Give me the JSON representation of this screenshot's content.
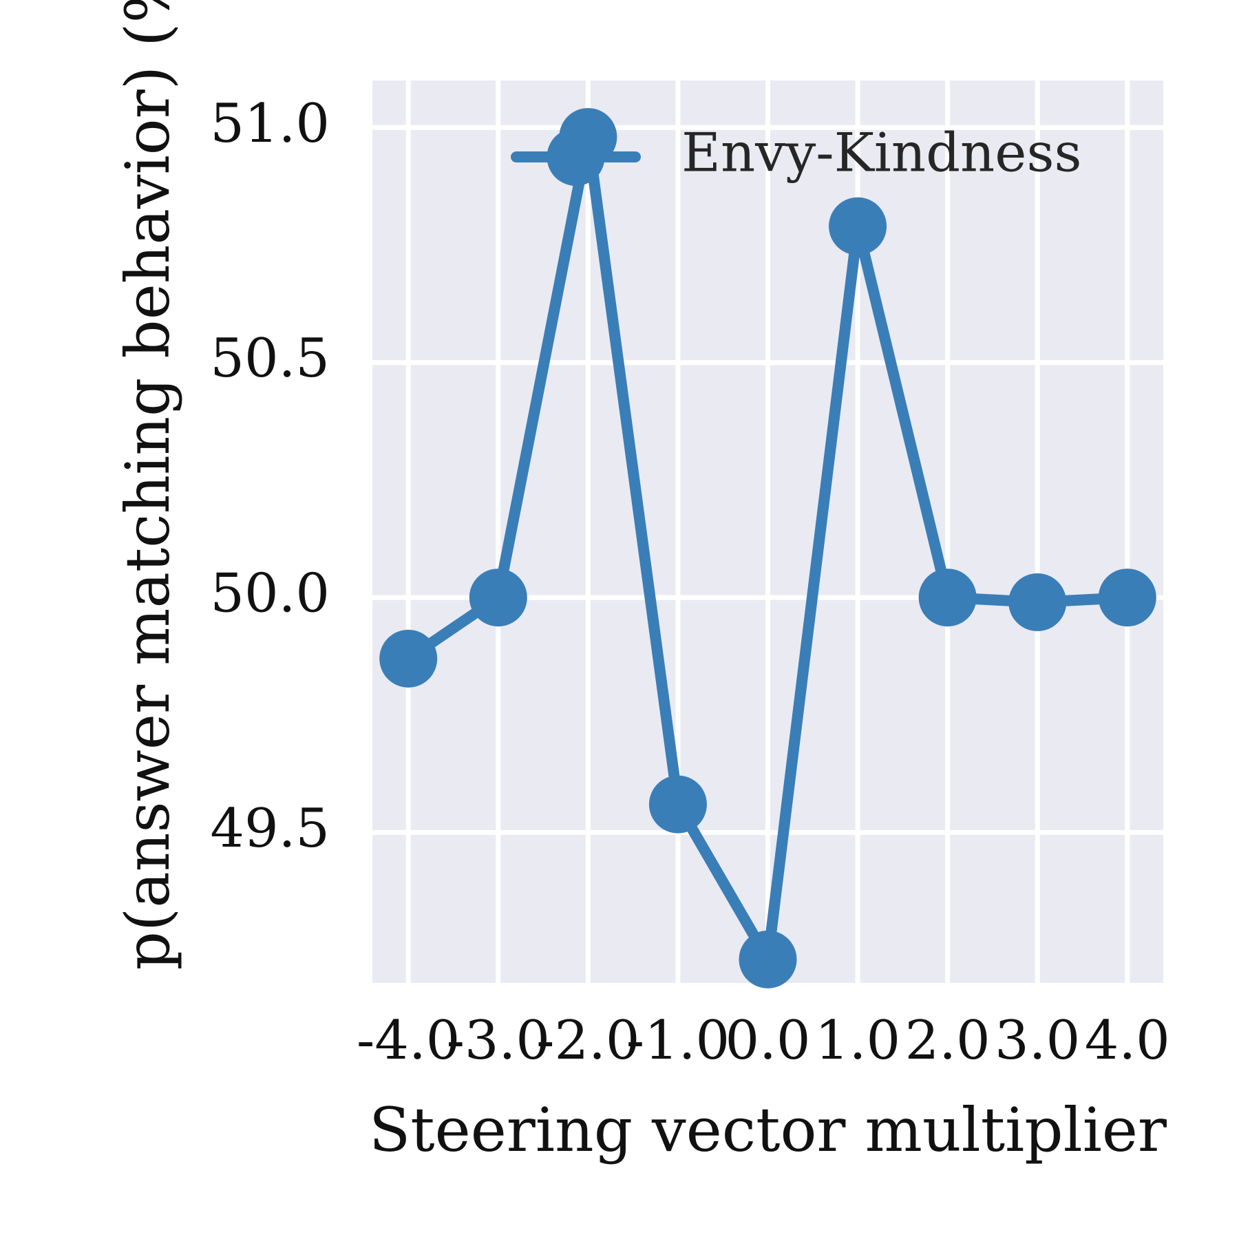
{
  "chart_data": {
    "type": "line",
    "xlabel": "Steering vector multiplier",
    "ylabel": "p(answer matching behavior) (%)",
    "x": [
      -4.0,
      -3.0,
      -2.0,
      -1.0,
      0.0,
      1.0,
      2.0,
      3.0,
      4.0
    ],
    "x_tick_labels": [
      "-4.0",
      "-3.0",
      "-2.0",
      "-1.0",
      "0.0",
      "1.0",
      "2.0",
      "3.0",
      "4.0"
    ],
    "y_ticks": [
      49.5,
      50.0,
      50.5,
      51.0
    ],
    "y_tick_labels": [
      "49.5",
      "50.0",
      "50.5",
      "51.0"
    ],
    "xlim": [
      -4.4,
      4.4
    ],
    "ylim": [
      49.18,
      51.1
    ],
    "grid": true,
    "legend": "top-right",
    "series": [
      {
        "name": "Envy-Kindness",
        "color": "#3a7eb8",
        "values": [
          49.87,
          50.0,
          50.98,
          49.56,
          49.23,
          50.79,
          50.0,
          49.99,
          50.0
        ]
      }
    ]
  },
  "style": {
    "plot_background": "#eaeaf2",
    "grid_color": "#ffffff"
  }
}
